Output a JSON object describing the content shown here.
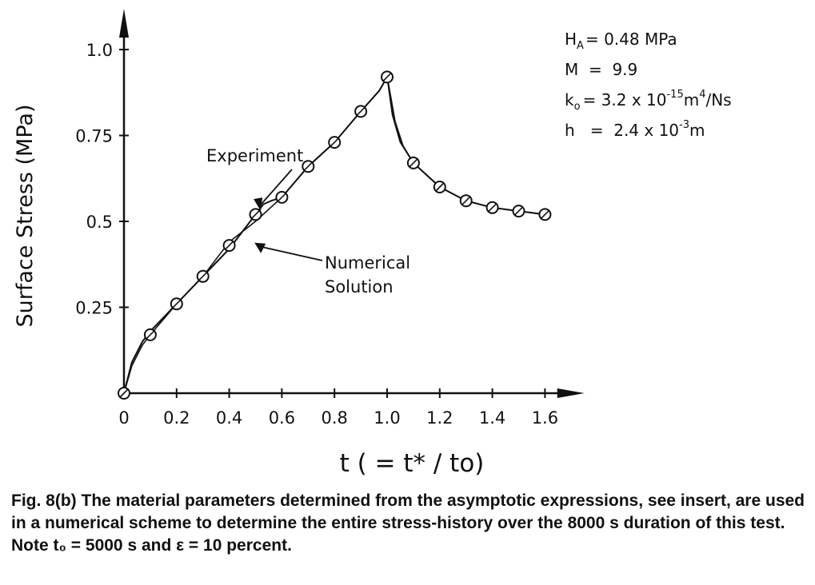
{
  "chart_data": {
    "type": "line",
    "xlabel": "t ( = t* / to)",
    "ylabel": "Surface Stress (MPa)",
    "xlim": [
      0,
      1.75
    ],
    "ylim": [
      0,
      1.1
    ],
    "x_ticks": [
      {
        "v": 0,
        "label": "0"
      },
      {
        "v": 0.2,
        "label": "0.2"
      },
      {
        "v": 0.4,
        "label": "0.4"
      },
      {
        "v": 0.6,
        "label": "0.6"
      },
      {
        "v": 0.8,
        "label": "0.8"
      },
      {
        "v": 1.0,
        "label": "1.0"
      },
      {
        "v": 1.2,
        "label": "1.2"
      },
      {
        "v": 1.4,
        "label": "1.4"
      },
      {
        "v": 1.6,
        "label": "1.6"
      }
    ],
    "y_ticks": [
      {
        "v": 0.25,
        "label": "0.25"
      },
      {
        "v": 0.5,
        "label": "0.5"
      },
      {
        "v": 0.75,
        "label": "0.75"
      },
      {
        "v": 1.0,
        "label": "1.0"
      }
    ],
    "series": [
      {
        "name": "Experiment",
        "x": [
          0,
          0.03,
          0.07,
          0.1,
          0.2,
          0.3,
          0.4,
          0.45,
          0.5,
          0.53,
          0.56,
          0.6,
          0.7,
          0.8,
          0.9,
          0.97,
          1.0,
          1.03,
          1.06,
          1.1,
          1.2,
          1.3,
          1.4,
          1.5,
          1.6
        ],
        "y": [
          0.0,
          0.09,
          0.15,
          0.18,
          0.26,
          0.34,
          0.42,
          0.47,
          0.52,
          0.55,
          0.56,
          0.57,
          0.66,
          0.73,
          0.82,
          0.88,
          0.92,
          0.79,
          0.72,
          0.67,
          0.6,
          0.56,
          0.54,
          0.53,
          0.52
        ]
      },
      {
        "name": "Numerical Solution",
        "x": [
          0,
          0.03,
          0.07,
          0.1,
          0.2,
          0.3,
          0.4,
          0.5,
          0.6,
          0.7,
          0.8,
          0.9,
          0.97,
          1.0,
          1.02,
          1.05,
          1.1,
          1.2,
          1.3,
          1.4,
          1.5,
          1.6
        ],
        "y": [
          0.0,
          0.08,
          0.14,
          0.17,
          0.26,
          0.34,
          0.44,
          0.5,
          0.57,
          0.66,
          0.73,
          0.82,
          0.88,
          0.92,
          0.81,
          0.73,
          0.67,
          0.6,
          0.56,
          0.54,
          0.53,
          0.52
        ]
      }
    ],
    "markers": {
      "x": [
        0,
        0.1,
        0.2,
        0.3,
        0.4,
        0.5,
        0.6,
        0.7,
        0.8,
        0.9,
        1.0,
        1.1,
        1.2,
        1.3,
        1.4,
        1.5,
        1.6
      ],
      "y": [
        0.0,
        0.17,
        0.26,
        0.34,
        0.43,
        0.52,
        0.57,
        0.66,
        0.73,
        0.82,
        0.92,
        0.67,
        0.6,
        0.56,
        0.54,
        0.53,
        0.52
      ]
    },
    "annotations": {
      "experiment": {
        "text": "Experiment",
        "target_x": 0.52,
        "target_y": 0.53
      },
      "numerical_line1": "Numerical",
      "numerical_line2": "Solution",
      "numerical_target": {
        "x": 0.49,
        "y": 0.44
      }
    },
    "params": {
      "HA": {
        "sym": "H",
        "sub": "A",
        "text": "= 0.48 MPa"
      },
      "M": {
        "text": "M  =  9.9"
      },
      "k0": {
        "sym": "k",
        "sub": "o",
        "pre": "=  3.2 x 10",
        "sup": "-15",
        "mid": "m",
        "sup2": "4",
        "post": "/Ns"
      },
      "h": {
        "pre": "h   =  2.4 x 10",
        "sup": "-3",
        "post": "m"
      }
    },
    "grid": false
  },
  "caption": "Fig. 8(b)   The material parameters determined from the asymptotic expressions, see insert, are used in a numerical scheme to determine the entire stress-history over the 8000 s duration of this test. Note t₀ = 5000 s and ε = 10 percent."
}
